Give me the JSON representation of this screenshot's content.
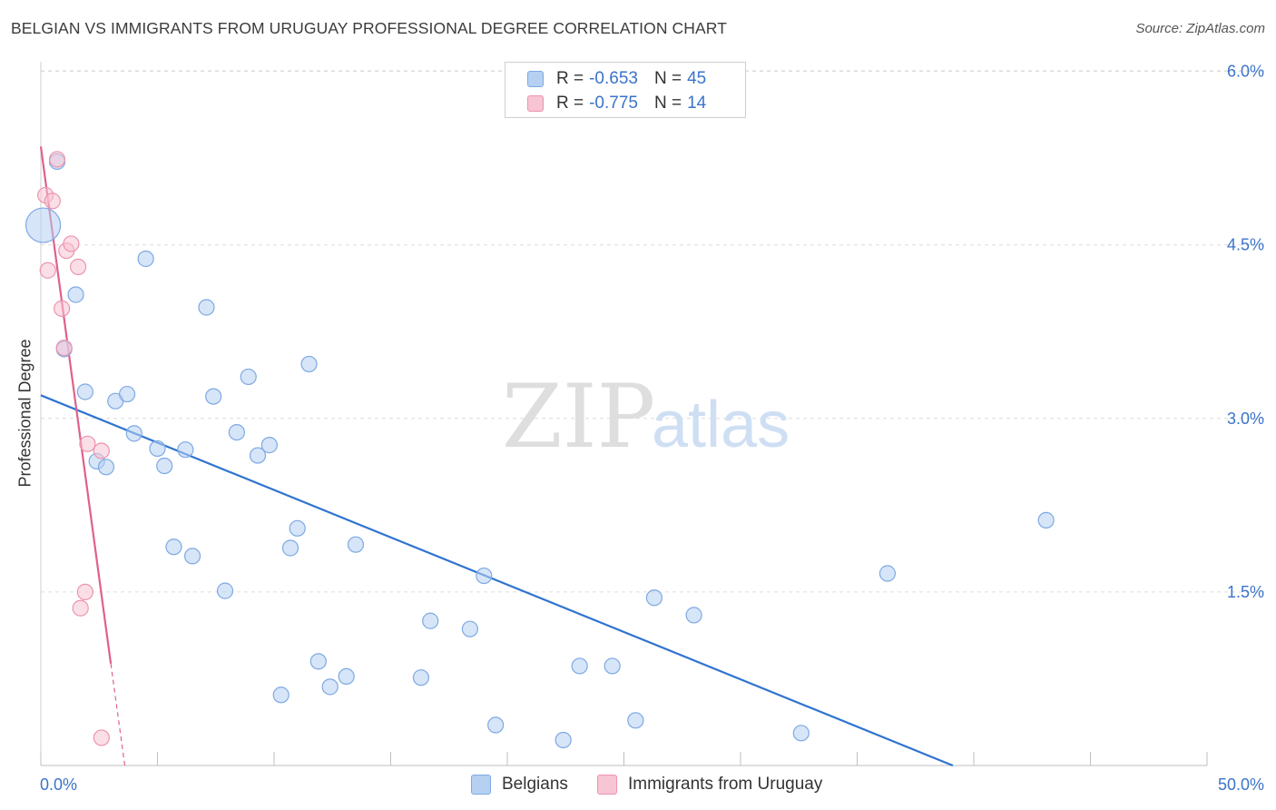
{
  "title": "BELGIAN VS IMMIGRANTS FROM URUGUAY PROFESSIONAL DEGREE CORRELATION CHART",
  "source": "Source: ZipAtlas.com",
  "watermark": {
    "part1": "ZIP",
    "part2": "atlas"
  },
  "stats": {
    "belgians": {
      "r_label": "R =",
      "r_value": "-0.653",
      "n_label": "N =",
      "n_value": "45"
    },
    "uruguay": {
      "r_label": "R =",
      "r_value": "-0.775",
      "n_label": "N =",
      "n_value": "14"
    }
  },
  "legend": {
    "belgians": "Belgians",
    "uruguay": "Immigrants from Uruguay"
  },
  "colors": {
    "blue_fill": "#b6d0f2",
    "blue_stroke": "#7da9e3",
    "blue_line": "#2f74d0",
    "pink_fill": "#f7c5d3",
    "pink_stroke": "#ec94ae",
    "pink_line": "#e0608d",
    "tick_label": "#3b73c9"
  },
  "chart_data": {
    "type": "scatter",
    "title": "BELGIAN VS IMMIGRANTS FROM URUGUAY PROFESSIONAL DEGREE CORRELATION CHART",
    "xlabel": "",
    "ylabel": "Professional Degree",
    "xlim": [
      0,
      50
    ],
    "ylim": [
      0,
      6.2
    ],
    "x_tick_labels": [
      {
        "value": 0,
        "label": "0.0%"
      },
      {
        "value": 50,
        "label": "50.0%"
      }
    ],
    "y_tick_labels": [
      {
        "value": 1.5,
        "label": "1.5%"
      },
      {
        "value": 3.0,
        "label": "3.0%"
      },
      {
        "value": 4.5,
        "label": "4.5%"
      },
      {
        "value": 6.0,
        "label": "6.0%"
      }
    ],
    "grid": true,
    "series": [
      {
        "name": "Belgians",
        "color": "#b6d0f2",
        "points": [
          [
            0.1,
            4.67,
            "large"
          ],
          [
            0.7,
            5.22
          ],
          [
            1.0,
            3.6
          ],
          [
            1.5,
            4.07
          ],
          [
            1.9,
            3.23
          ],
          [
            2.4,
            2.63
          ],
          [
            2.8,
            2.58
          ],
          [
            3.2,
            3.15
          ],
          [
            3.7,
            3.21
          ],
          [
            4.0,
            2.87
          ],
          [
            4.5,
            4.38
          ],
          [
            5.0,
            2.74
          ],
          [
            5.3,
            2.59
          ],
          [
            5.7,
            1.89
          ],
          [
            6.2,
            2.73
          ],
          [
            6.5,
            1.81
          ],
          [
            7.1,
            3.96
          ],
          [
            7.4,
            3.19
          ],
          [
            7.9,
            1.51
          ],
          [
            8.4,
            2.88
          ],
          [
            8.9,
            3.36
          ],
          [
            9.3,
            2.68
          ],
          [
            9.8,
            2.77
          ],
          [
            10.3,
            0.61
          ],
          [
            10.7,
            1.88
          ],
          [
            11.0,
            2.05
          ],
          [
            11.5,
            3.47
          ],
          [
            11.9,
            0.9
          ],
          [
            12.4,
            0.68
          ],
          [
            13.1,
            0.77
          ],
          [
            13.5,
            1.91
          ],
          [
            16.3,
            0.76
          ],
          [
            16.7,
            1.25
          ],
          [
            18.4,
            1.18
          ],
          [
            19.0,
            1.64
          ],
          [
            19.5,
            0.35
          ],
          [
            22.4,
            0.22
          ],
          [
            23.1,
            0.86
          ],
          [
            24.5,
            0.86
          ],
          [
            25.5,
            0.39
          ],
          [
            26.3,
            1.45
          ],
          [
            28.0,
            1.3
          ],
          [
            32.6,
            0.28
          ],
          [
            36.3,
            1.66
          ],
          [
            43.1,
            2.12
          ]
        ]
      },
      {
        "name": "Immigrants from Uruguay",
        "color": "#f7c5d3",
        "points": [
          [
            0.2,
            4.93
          ],
          [
            0.3,
            4.28
          ],
          [
            0.5,
            4.88
          ],
          [
            0.7,
            5.24
          ],
          [
            0.9,
            3.95
          ],
          [
            1.0,
            3.61
          ],
          [
            1.1,
            4.45
          ],
          [
            1.3,
            4.51
          ],
          [
            1.6,
            4.31
          ],
          [
            2.0,
            2.78
          ],
          [
            2.6,
            2.72
          ],
          [
            1.9,
            1.5
          ],
          [
            1.7,
            1.36
          ],
          [
            2.6,
            0.24
          ]
        ]
      }
    ],
    "trend_lines": [
      {
        "series": "Belgians",
        "x_start": 0.0,
        "y_start": 3.2,
        "x_end": 39.1,
        "y_end": 0.0
      },
      {
        "series": "Immigrants from Uruguay",
        "x_start": 0.0,
        "y_start": 5.35,
        "x_end": 3.0,
        "y_end": 0.88,
        "dashed_to": {
          "x": 3.6,
          "y": 0.0
        }
      }
    ]
  }
}
